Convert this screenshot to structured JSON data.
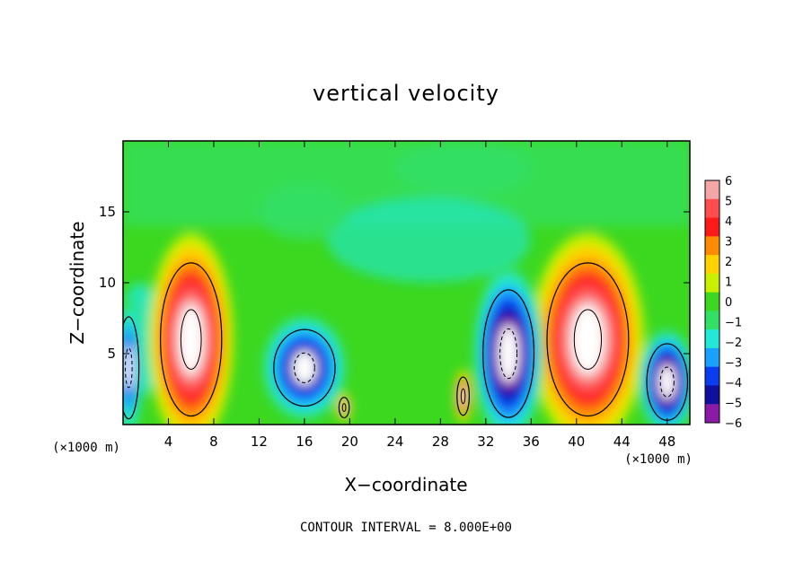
{
  "chart_data": {
    "type": "heatmap",
    "title": "vertical velocity",
    "xlabel": "X−coordinate",
    "ylabel": "Z−coordinate",
    "x_unit_label": "(×1000 m)",
    "footer": "CONTOUR INTERVAL = 8.000E+00",
    "xlim": [
      0,
      50
    ],
    "ylim": [
      0,
      20
    ],
    "x_ticks": [
      "4",
      "8",
      "12",
      "16",
      "20",
      "24",
      "28",
      "32",
      "36",
      "40",
      "44",
      "48"
    ],
    "x_tick_values": [
      4,
      8,
      12,
      16,
      20,
      24,
      28,
      32,
      36,
      40,
      44,
      48
    ],
    "y_ticks": [
      "5",
      "10",
      "15"
    ],
    "y_tick_values": [
      5,
      10,
      15
    ],
    "colorbar": {
      "labels": [
        "6",
        "5",
        "4",
        "3",
        "2",
        "1",
        "0",
        "−1",
        "−2",
        "−3",
        "−4",
        "−5",
        "−6"
      ],
      "values": [
        6,
        5,
        4,
        3,
        2,
        1,
        0,
        -1,
        -2,
        -3,
        -4,
        -5,
        -6
      ],
      "colors": [
        "#f4a6a6",
        "#ff4d4d",
        "#ff1a1a",
        "#ff8c00",
        "#ffd200",
        "#c8f000",
        "#3cd820",
        "#33e066",
        "#22e8d8",
        "#1aa0ff",
        "#0a3cf0",
        "#1010a0",
        "#8b1aa8"
      ]
    },
    "features": [
      {
        "kind": "updraft",
        "x": 6,
        "z": 6,
        "rx": 3,
        "rz": 6,
        "value": 6
      },
      {
        "kind": "updraft",
        "x": 41,
        "z": 6,
        "rx": 4,
        "rz": 6,
        "value": 6
      },
      {
        "kind": "updraft",
        "x": 30,
        "z": 2,
        "rx": 0.6,
        "rz": 1.5,
        "value": 5
      },
      {
        "kind": "updraft",
        "x": 19.5,
        "z": 1.2,
        "rx": 0.5,
        "rz": 0.8,
        "value": 4
      },
      {
        "kind": "downdraft",
        "x": 34,
        "z": 5,
        "rx": 2.5,
        "rz": 5,
        "value": -6
      },
      {
        "kind": "downdraft",
        "x": 16,
        "z": 4,
        "rx": 3,
        "rz": 3,
        "value": -5
      },
      {
        "kind": "downdraft",
        "x": 48,
        "z": 3,
        "rx": 2,
        "rz": 3,
        "value": -6
      },
      {
        "kind": "downdraft",
        "x": 0.5,
        "z": 4,
        "rx": 1,
        "rz": 4,
        "value": -4
      }
    ]
  }
}
